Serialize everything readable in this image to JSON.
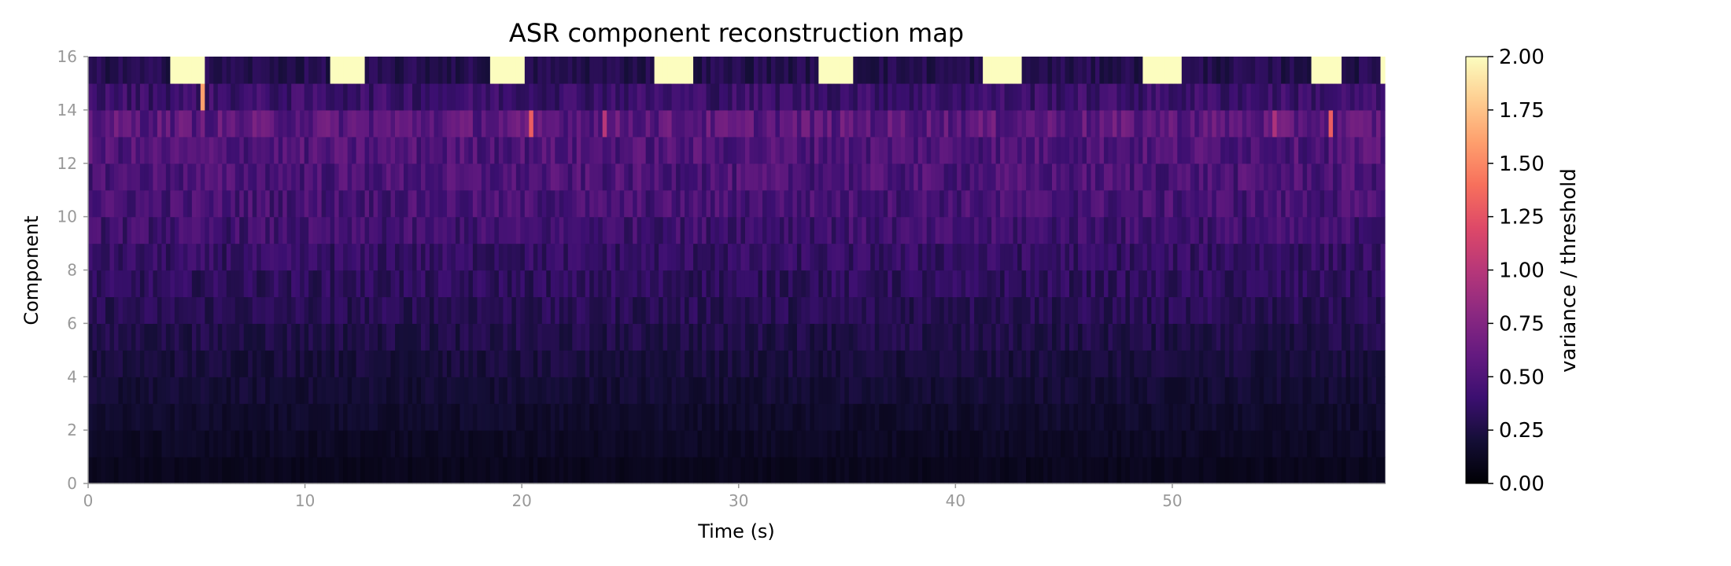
{
  "chart_data": {
    "type": "heatmap",
    "title": "ASR component reconstruction map",
    "xlabel": "Time (s)",
    "ylabel": "Component",
    "xlim": [
      0,
      59.8
    ],
    "ylim": [
      0,
      16
    ],
    "xticks": [
      "0",
      "10",
      "20",
      "30",
      "40",
      "50"
    ],
    "yticks": [
      "0",
      "2",
      "4",
      "6",
      "8",
      "10",
      "12",
      "14",
      "16"
    ],
    "n_components": 16,
    "colormap": "magma",
    "colorbar": {
      "label": "variance / threshold",
      "range": [
        0.0,
        2.0
      ],
      "ticks": [
        "0.00",
        "0.25",
        "0.50",
        "0.75",
        "1.00",
        "1.25",
        "1.50",
        "1.75",
        "2.00"
      ]
    },
    "component_baseline_ratio": [
      0.1,
      0.13,
      0.16,
      0.19,
      0.22,
      0.26,
      0.3,
      0.33,
      0.36,
      0.42,
      0.46,
      0.48,
      0.5,
      0.56,
      0.4,
      0.28
    ],
    "saturated_windows_component_16_s": [
      [
        3.7,
        5.3
      ],
      [
        11.1,
        12.8
      ],
      [
        18.5,
        20.2
      ],
      [
        26.2,
        27.9
      ],
      [
        33.6,
        35.3
      ],
      [
        41.3,
        43.0
      ],
      [
        48.7,
        50.4
      ],
      [
        56.4,
        57.9
      ],
      [
        59.6,
        59.8
      ]
    ],
    "highlights": [
      {
        "component": 15,
        "time_s": 5.3,
        "value": 1.6
      },
      {
        "component": 14,
        "time_s": 20.4,
        "value": 1.3
      },
      {
        "component": 14,
        "time_s": 23.8,
        "value": 1.0
      },
      {
        "component": 14,
        "time_s": 54.7,
        "value": 0.95
      },
      {
        "component": 14,
        "time_s": 57.3,
        "value": 1.3
      }
    ]
  }
}
